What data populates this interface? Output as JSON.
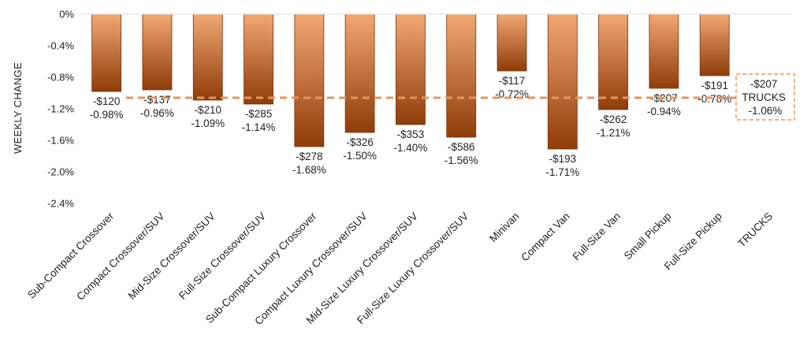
{
  "chart_data": {
    "type": "bar",
    "ylabel": "WEEKLY CHANGE",
    "ylim": [
      -2.4,
      0
    ],
    "y_ticks": [
      "0%",
      "-0.4%",
      "-0.8%",
      "-1.2%",
      "-1.6%",
      "-2.0%",
      "-2.4%"
    ],
    "y_tick_values": [
      0,
      -0.4,
      -0.8,
      -1.2,
      -1.6,
      -2.0,
      -2.4
    ],
    "categories": [
      "Sub-Compact Crossover",
      "Compact Crossover/SUV",
      "Mid-Size Crossover/SUV",
      "Full-Size Crossover/SUV",
      "Sub-Compact Luxury Crossover",
      "Compact Luxury Crossover/SUV",
      "Mid-Size Luxury Crossover/SUV",
      "Full-Size Luxury Crossover/SUV",
      "Minivan",
      "Compact Van",
      "Full-Size Van",
      "Small Pickup",
      "Full-Size Pickup",
      "TRUCKS"
    ],
    "values": [
      -0.98,
      -0.96,
      -1.09,
      -1.14,
      -1.68,
      -1.5,
      -1.4,
      -1.56,
      -0.72,
      -1.71,
      -1.21,
      -0.94,
      -0.78,
      null
    ],
    "dollar_labels": [
      "-$120",
      "-$137",
      "-$210",
      "-$285",
      "-$278",
      "-$326",
      "-$353",
      "-$586",
      "-$117",
      "-$193",
      "-$262",
      "-$207",
      "-$191"
    ],
    "percent_labels": [
      "-0.98%",
      "-0.96%",
      "-1.09%",
      "-1.14%",
      "-1.68%",
      "-1.50%",
      "-1.40%",
      "-1.56%",
      "-0.72%",
      "-1.71%",
      "-1.21%",
      "-0.94%",
      "-0.78%"
    ],
    "average_line": {
      "value": -1.06,
      "label_lines": [
        "-$207",
        "TRUCKS",
        "-1.06%"
      ],
      "color": "#e8945a"
    },
    "colors": {
      "bar_top": "#f2a874",
      "bar_bottom": "#8f3c08",
      "bar_border": "#7a3208",
      "axis": "#d9d9d9"
    },
    "grid": false
  }
}
